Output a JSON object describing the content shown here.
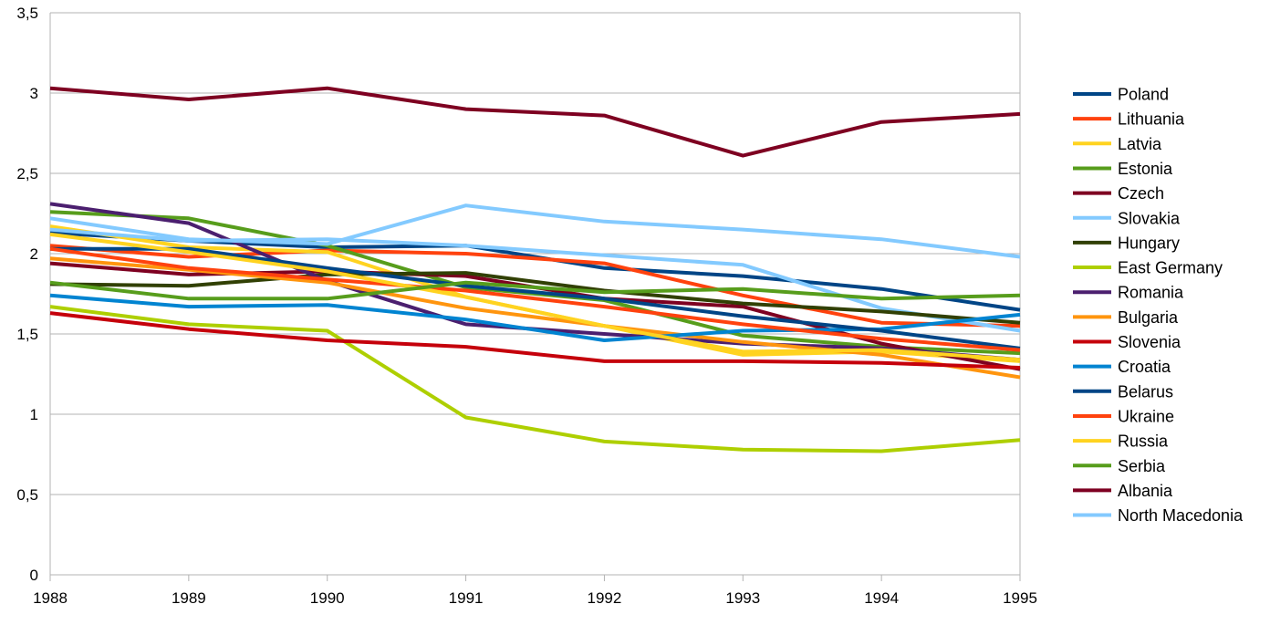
{
  "chart_data": {
    "type": "line",
    "title": "",
    "xlabel": "",
    "ylabel": "",
    "x": [
      "1988",
      "1989",
      "1990",
      "1991",
      "1992",
      "1993",
      "1994",
      "1995"
    ],
    "ylim": [
      0,
      3.5
    ],
    "yticks": [
      {
        "value": 0,
        "label": "0"
      },
      {
        "value": 0.5,
        "label": "0,5"
      },
      {
        "value": 1,
        "label": "1"
      },
      {
        "value": 1.5,
        "label": "1,5"
      },
      {
        "value": 2,
        "label": "2"
      },
      {
        "value": 2.5,
        "label": "2,5"
      },
      {
        "value": 3,
        "label": "3"
      },
      {
        "value": 3.5,
        "label": "3,5"
      }
    ],
    "grid": true,
    "legend_position": "right",
    "series": [
      {
        "name": "Poland",
        "color": "#004586",
        "values": [
          2.13,
          2.08,
          2.04,
          2.05,
          1.91,
          1.86,
          1.78,
          1.65
        ]
      },
      {
        "name": "Lithuania",
        "color": "#ff420e",
        "values": [
          2.05,
          1.98,
          2.02,
          2.0,
          1.94,
          1.74,
          1.57,
          1.55
        ]
      },
      {
        "name": "Latvia",
        "color": "#ffd320",
        "values": [
          2.17,
          2.04,
          2.01,
          1.73,
          1.55,
          1.37,
          1.39,
          1.33
        ]
      },
      {
        "name": "Estonia",
        "color": "#579d1c",
        "values": [
          2.26,
          2.22,
          2.05,
          1.79,
          1.71,
          1.49,
          1.42,
          1.38
        ]
      },
      {
        "name": "Czech",
        "color": "#7e0021",
        "values": [
          1.94,
          1.87,
          1.89,
          1.86,
          1.72,
          1.67,
          1.44,
          1.28
        ]
      },
      {
        "name": "Slovakia",
        "color": "#83caff",
        "values": [
          2.15,
          2.08,
          2.09,
          2.05,
          1.99,
          1.93,
          1.66,
          1.52
        ]
      },
      {
        "name": "Hungary",
        "color": "#314004",
        "values": [
          1.81,
          1.8,
          1.87,
          1.88,
          1.77,
          1.69,
          1.64,
          1.57
        ]
      },
      {
        "name": "East Germany",
        "color": "#aecf00",
        "values": [
          1.67,
          1.56,
          1.52,
          0.98,
          0.83,
          0.78,
          0.77,
          0.84
        ]
      },
      {
        "name": "Romania",
        "color": "#4b1f6f",
        "values": [
          2.31,
          2.19,
          1.83,
          1.56,
          1.5,
          1.44,
          1.41,
          1.34
        ]
      },
      {
        "name": "Bulgaria",
        "color": "#ff950e",
        "values": [
          1.97,
          1.9,
          1.82,
          1.66,
          1.55,
          1.45,
          1.37,
          1.23
        ]
      },
      {
        "name": "Slovenia",
        "color": "#c5000b",
        "values": [
          1.63,
          1.53,
          1.46,
          1.42,
          1.33,
          1.33,
          1.32,
          1.29
        ]
      },
      {
        "name": "Croatia",
        "color": "#0084d1",
        "values": [
          1.74,
          1.67,
          1.68,
          1.59,
          1.46,
          1.52,
          1.53,
          1.62
        ]
      },
      {
        "name": "Belarus",
        "color": "#004586",
        "values": [
          2.03,
          2.03,
          1.91,
          1.8,
          1.72,
          1.61,
          1.52,
          1.41
        ]
      },
      {
        "name": "Ukraine",
        "color": "#ff420e",
        "values": [
          2.03,
          1.91,
          1.84,
          1.77,
          1.67,
          1.56,
          1.47,
          1.4
        ]
      },
      {
        "name": "Russia",
        "color": "#ffd320",
        "values": [
          2.12,
          2.01,
          1.89,
          1.73,
          1.55,
          1.39,
          1.4,
          1.34
        ]
      },
      {
        "name": "Serbia",
        "color": "#579d1c",
        "values": [
          1.82,
          1.72,
          1.72,
          1.82,
          1.76,
          1.78,
          1.72,
          1.74
        ]
      },
      {
        "name": "Albania",
        "color": "#7e0021",
        "values": [
          3.03,
          2.96,
          3.03,
          2.9,
          2.86,
          2.61,
          2.82,
          2.87
        ]
      },
      {
        "name": "North Macedonia",
        "color": "#83caff",
        "values": [
          2.22,
          2.09,
          2.06,
          2.3,
          2.2,
          2.15,
          2.09,
          1.98
        ]
      }
    ]
  }
}
